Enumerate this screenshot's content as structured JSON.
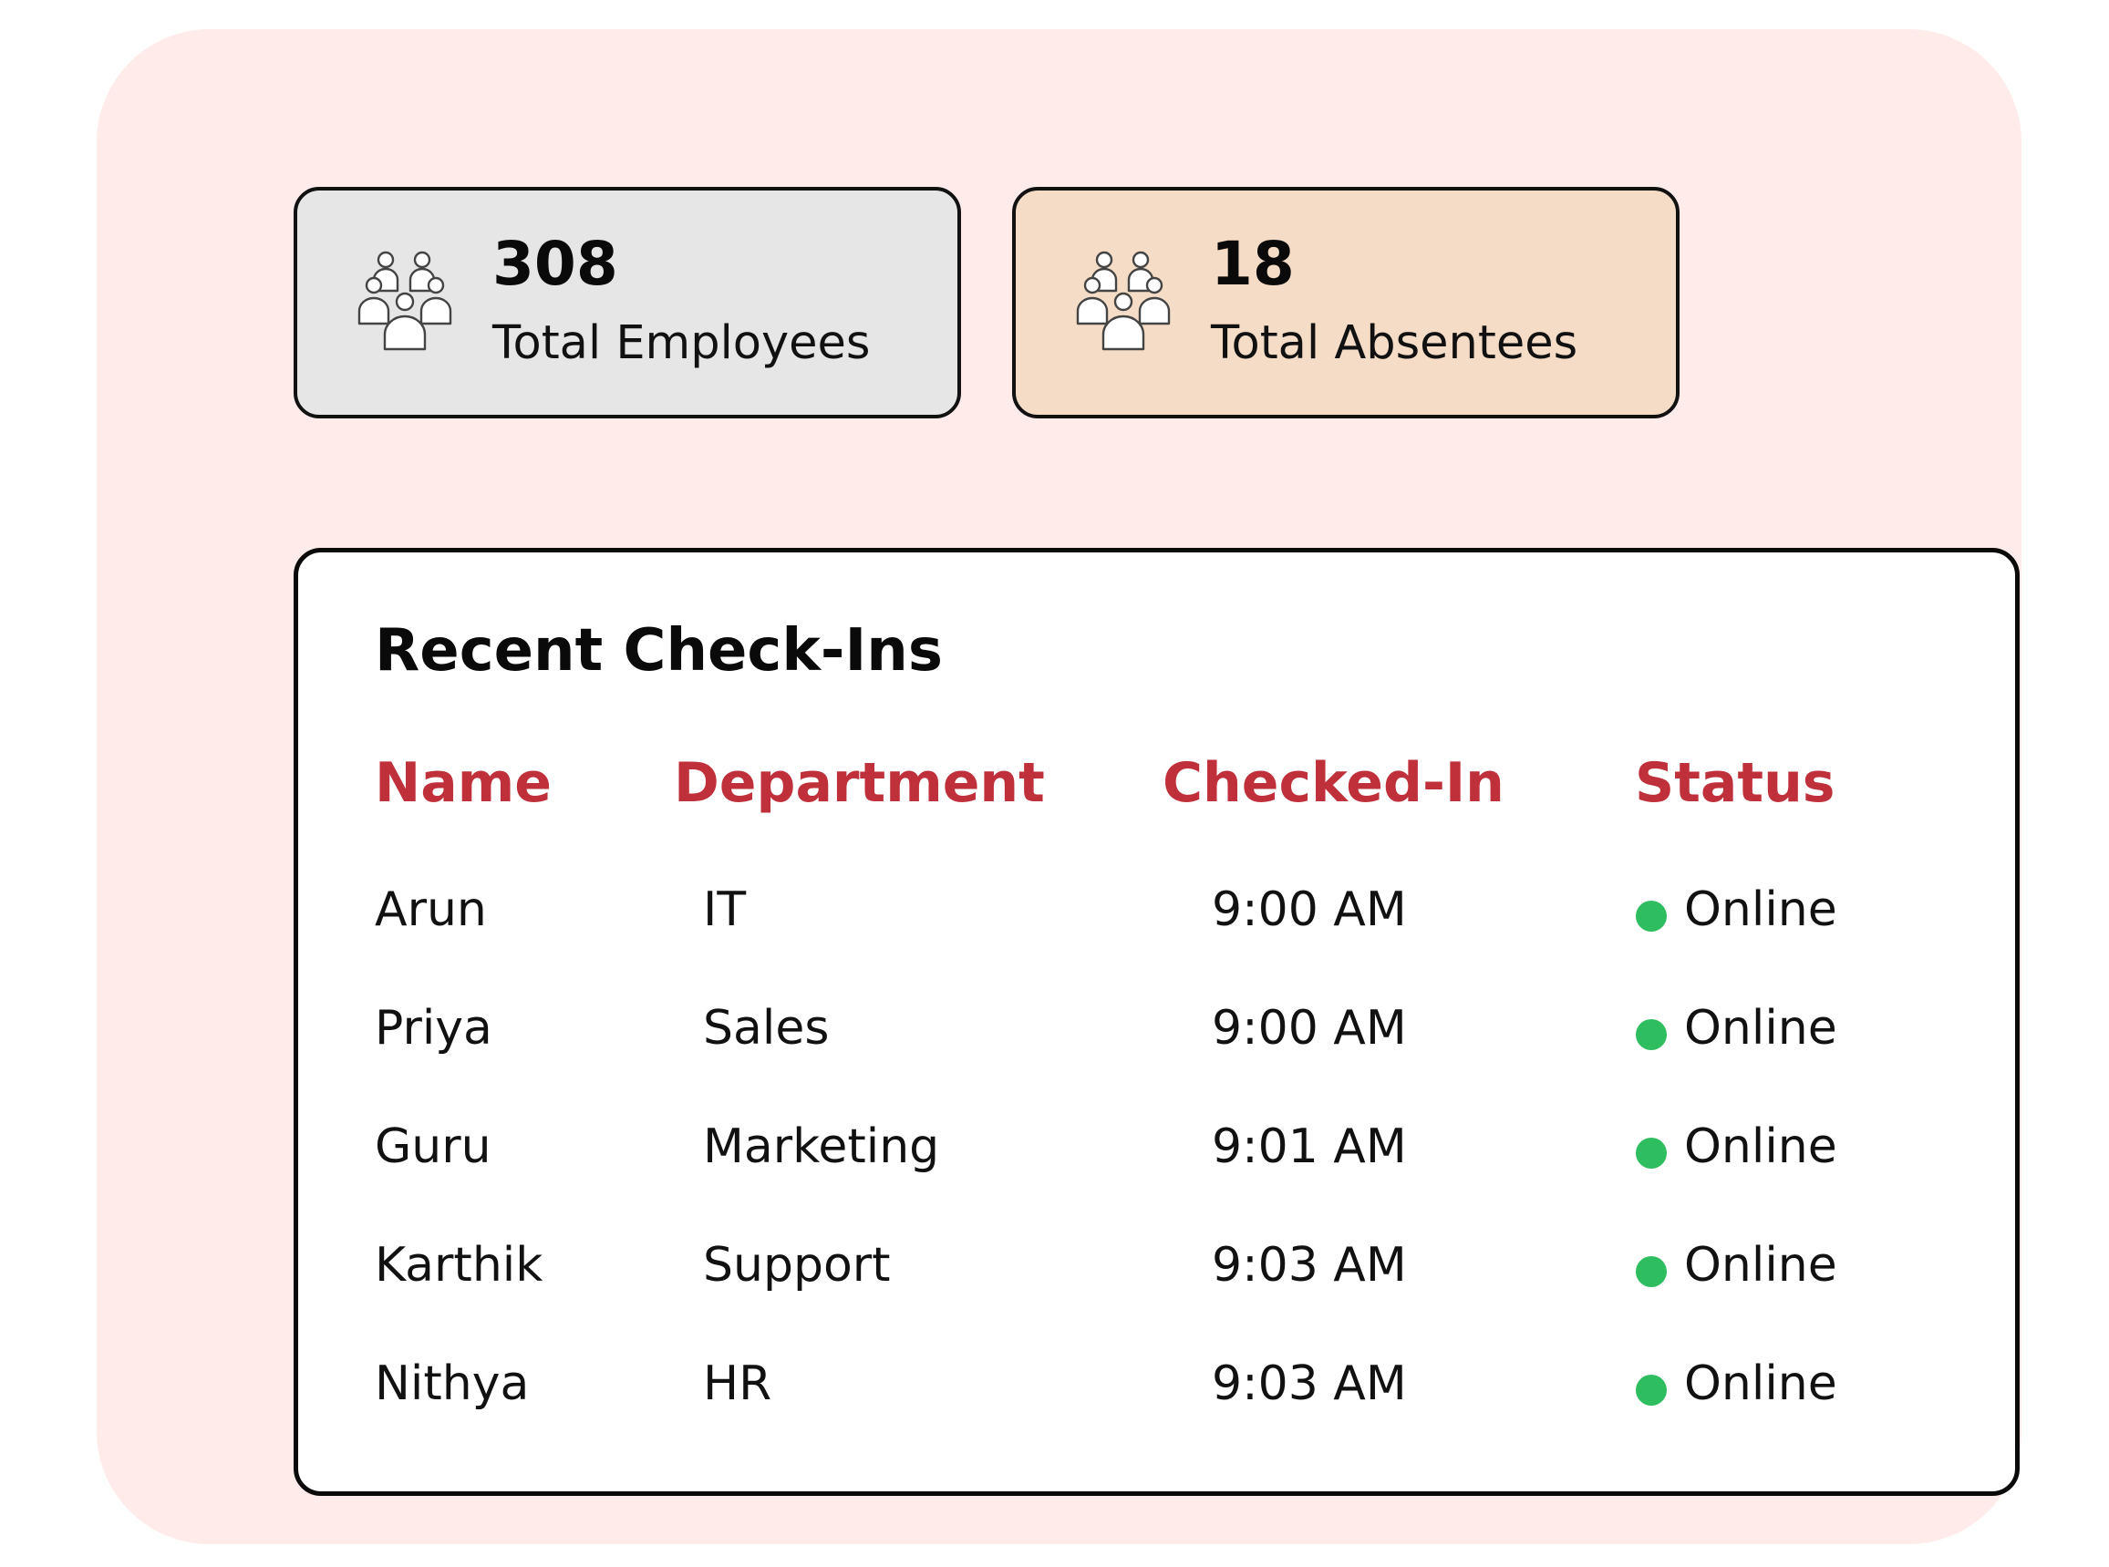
{
  "stats": {
    "employees": {
      "value": "308",
      "label": "Total Employees",
      "icon": "people-group-icon"
    },
    "absentees": {
      "value": "18",
      "label": "Total Absentees",
      "icon": "people-group-icon"
    }
  },
  "checkins": {
    "title": "Recent Check-Ins",
    "columns": [
      "Name",
      "Department",
      "Checked-In",
      "Status"
    ],
    "rows": [
      {
        "name": "Arun",
        "department": "IT",
        "checked_in": "9:00 AM",
        "status": "Online"
      },
      {
        "name": "Priya",
        "department": "Sales",
        "checked_in": "9:00 AM",
        "status": "Online"
      },
      {
        "name": "Guru",
        "department": "Marketing",
        "checked_in": "9:01 AM",
        "status": "Online"
      },
      {
        "name": "Karthik",
        "department": "Support",
        "checked_in": "9:03 AM",
        "status": "Online"
      },
      {
        "name": "Nithya",
        "department": "HR",
        "checked_in": "9:03 AM",
        "status": "Online"
      }
    ]
  },
  "colors": {
    "panel_background": "#ffebe9",
    "employees_card": "#e6e6e6",
    "absentees_card": "#f4dcc6",
    "header_text": "#c0303a",
    "status_online": "#2ebe60"
  }
}
